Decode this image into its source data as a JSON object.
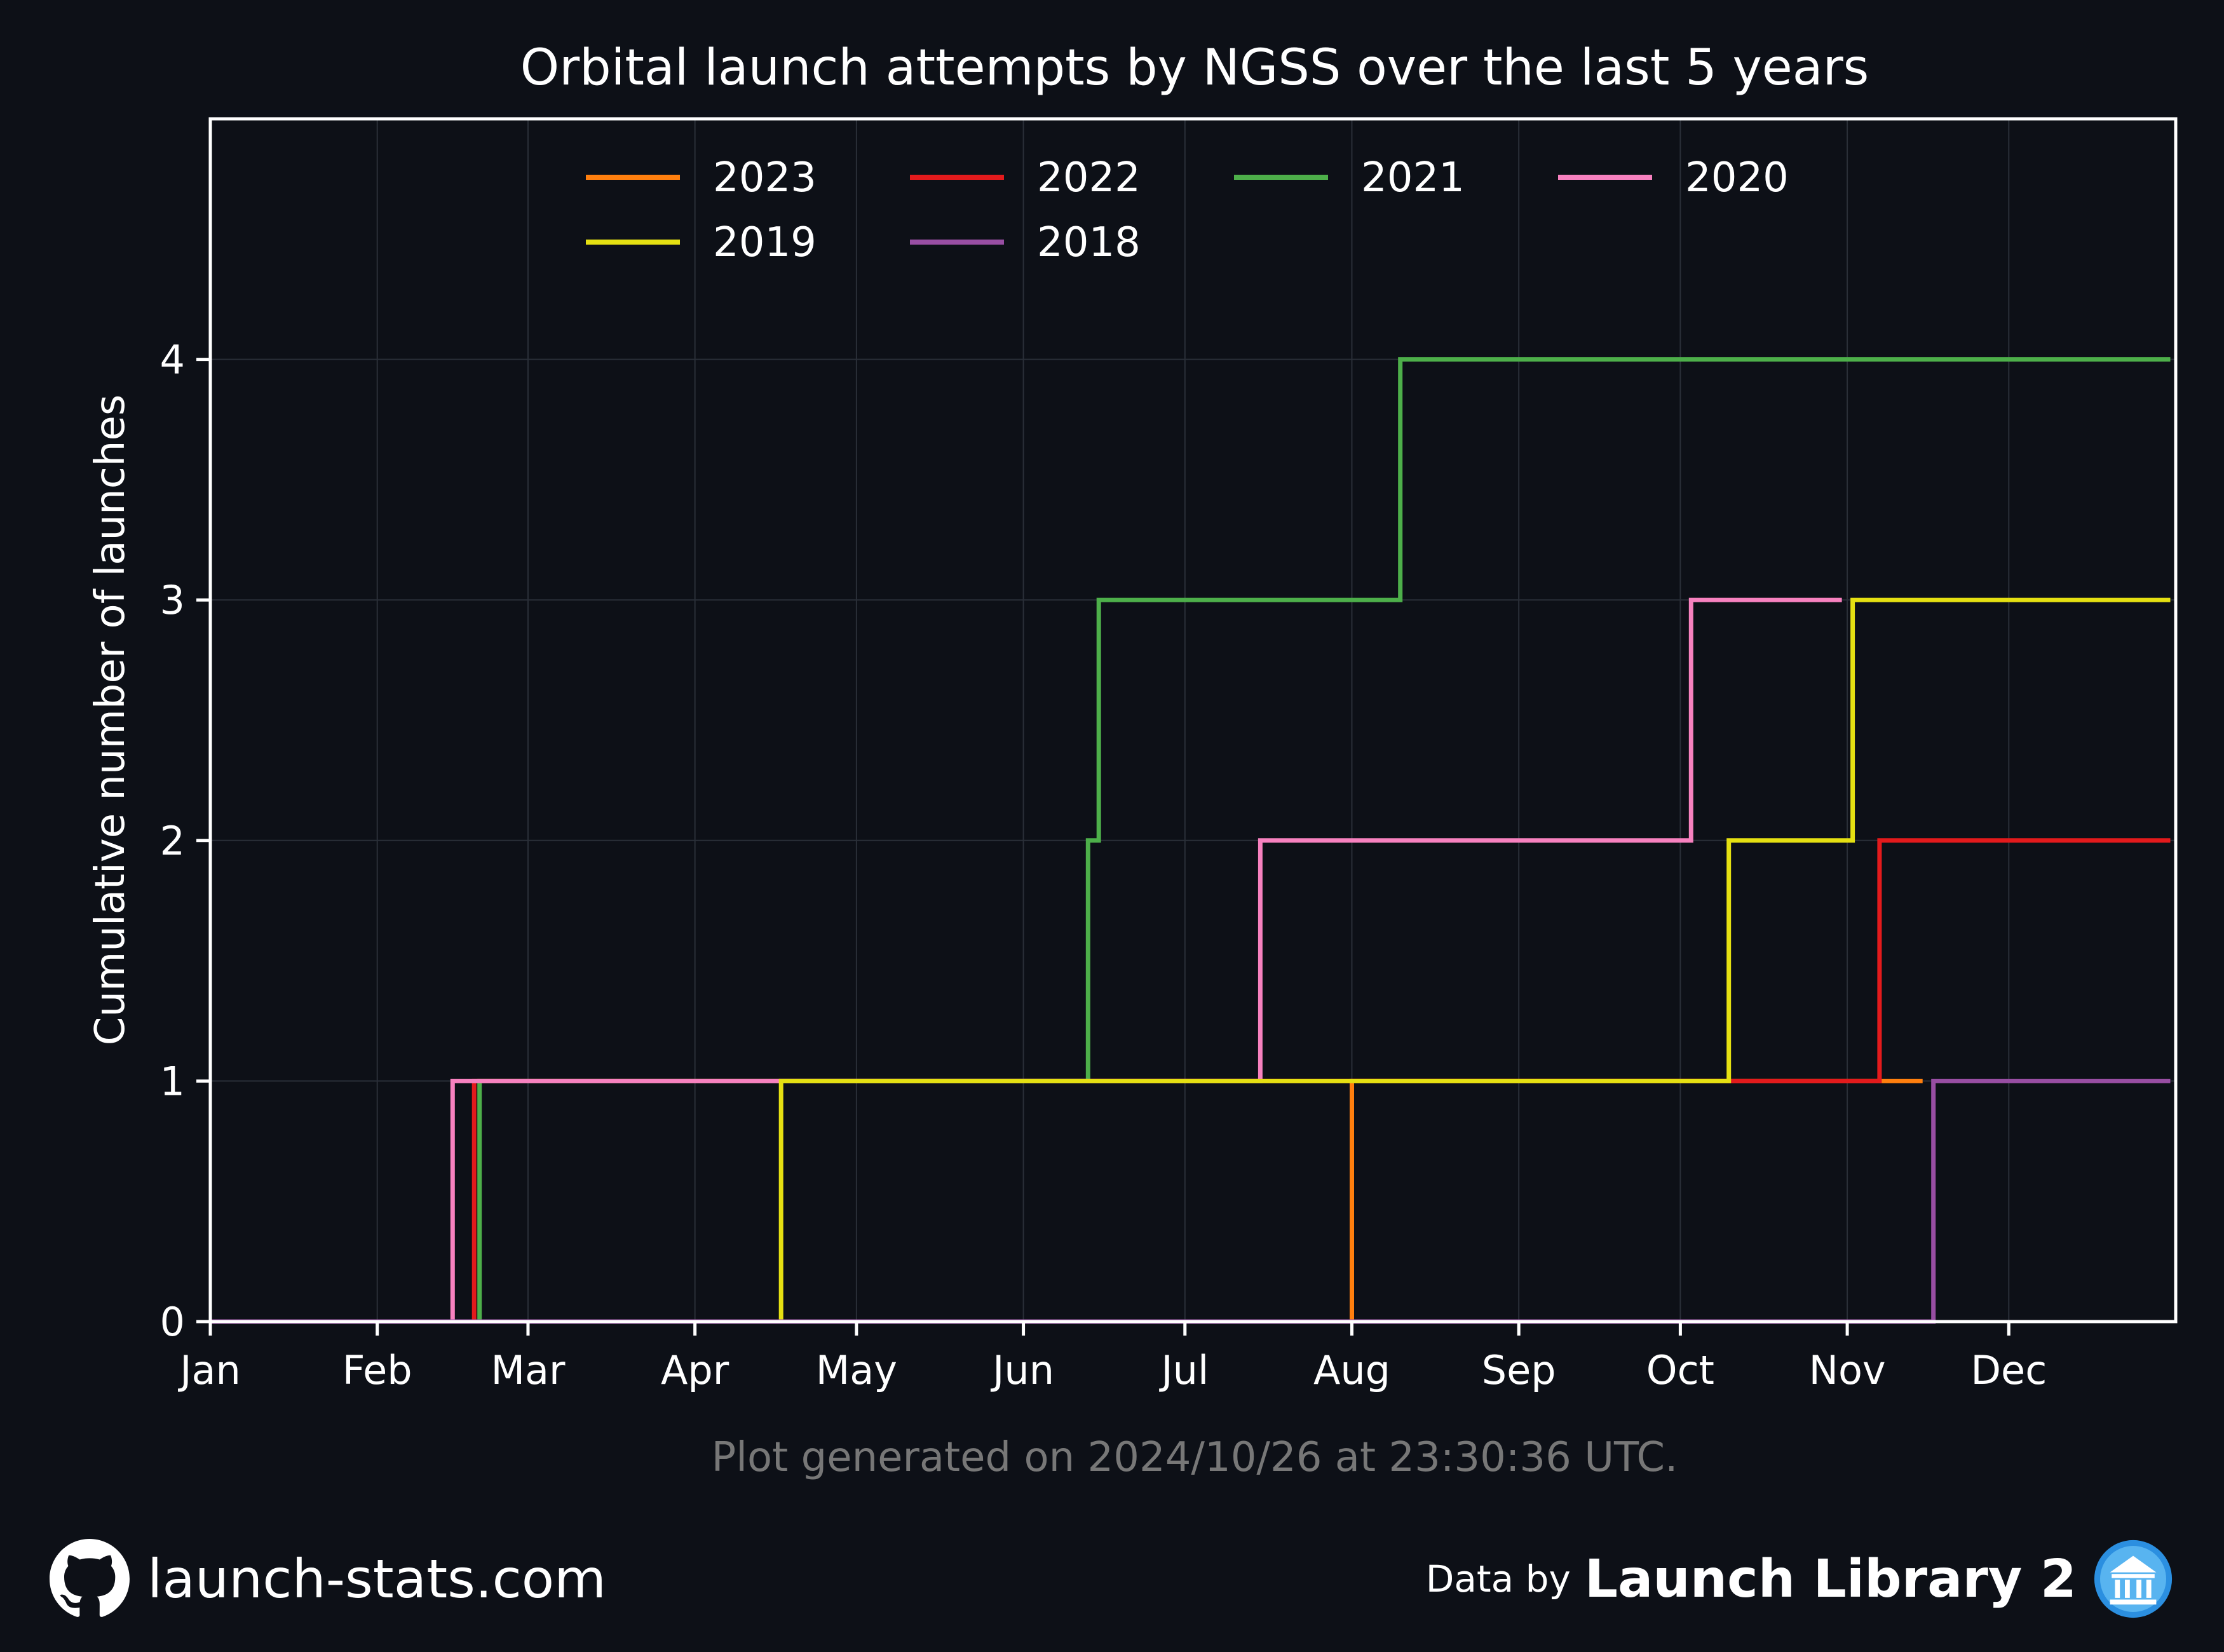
{
  "chart_data": {
    "type": "line",
    "title": "Orbital launch attempts by NGSS over the last 5 years",
    "ylabel": "Cumulative number of launches",
    "xlabel": "",
    "x_ticks": [
      "Jan",
      "Feb",
      "Mar",
      "Apr",
      "May",
      "Jun",
      "Jul",
      "Aug",
      "Sep",
      "Oct",
      "Nov",
      "Dec"
    ],
    "y_ticks": [
      0,
      1,
      2,
      3,
      4
    ],
    "xlim_day_of_year": [
      1,
      366
    ],
    "ylim": [
      0,
      5
    ],
    "step": "post",
    "grid": true,
    "legend_position": "top",
    "series": [
      {
        "name": "2023",
        "color": "#ff7f0e",
        "points": [
          [
            "Jan 01",
            0
          ],
          [
            "Aug 01",
            1
          ],
          [
            "Nov 15",
            1
          ]
        ]
      },
      {
        "name": "2022",
        "color": "#e31a1c",
        "points": [
          [
            "Jan 01",
            0
          ],
          [
            "Feb 19",
            1
          ],
          [
            "Nov 07",
            2
          ],
          [
            "Dec 31",
            2
          ]
        ]
      },
      {
        "name": "2021",
        "color": "#4daf4a",
        "points": [
          [
            "Jan 01",
            0
          ],
          [
            "Feb 20",
            1
          ],
          [
            "Jun 13",
            2
          ],
          [
            "Jun 15",
            3
          ],
          [
            "Aug 10",
            4
          ],
          [
            "Dec 31",
            4
          ]
        ]
      },
      {
        "name": "2020",
        "color": "#f781bf",
        "points": [
          [
            "Jan 01",
            0
          ],
          [
            "Feb 15",
            1
          ],
          [
            "Jul 15",
            2
          ],
          [
            "Oct 03",
            3
          ],
          [
            "Oct 31",
            3
          ]
        ]
      },
      {
        "name": "2019",
        "color": "#e5e012",
        "points": [
          [
            "Jan 01",
            0
          ],
          [
            "Apr 17",
            1
          ],
          [
            "Oct 10",
            2
          ],
          [
            "Nov 02",
            3
          ],
          [
            "Dec 31",
            3
          ]
        ]
      },
      {
        "name": "2018",
        "color": "#984ea3",
        "points": [
          [
            "Jan 01",
            0
          ],
          [
            "Nov 17",
            1
          ],
          [
            "Dec 31",
            1
          ]
        ]
      }
    ],
    "annotation": "Plot generated on 2024/10/26 at 23:30:36 UTC."
  },
  "footer": {
    "site": "launch-stats.com",
    "data_by": "Data by",
    "library": "Launch Library 2"
  },
  "icons": {
    "left": "github-icon",
    "right": "launch-library-logo-icon"
  },
  "colors": {
    "background": "#0d1017",
    "axes": "#ffffff",
    "grid": "#2a2f38",
    "annotation": "#777777"
  }
}
